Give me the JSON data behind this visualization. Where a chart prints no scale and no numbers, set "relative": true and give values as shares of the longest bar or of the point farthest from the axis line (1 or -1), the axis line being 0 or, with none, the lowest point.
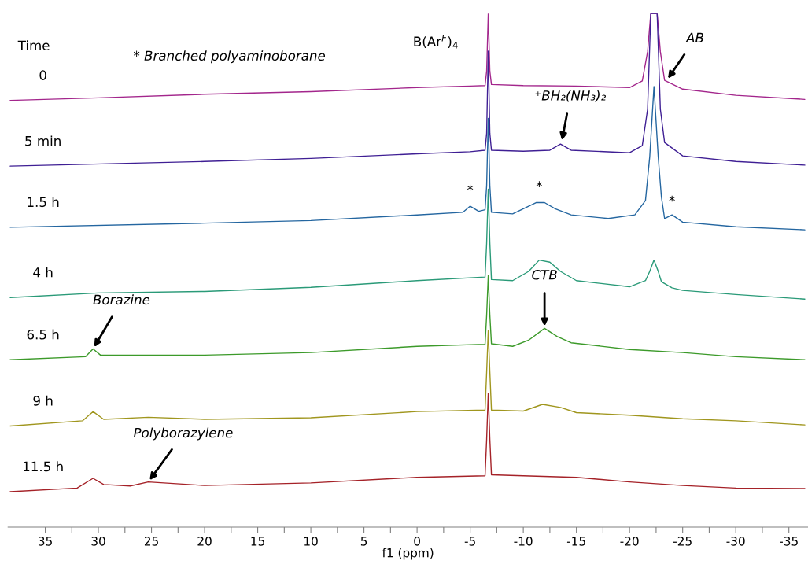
{
  "chart_data": {
    "type": "line",
    "relative": true,
    "xlabel": "f1 (ppm)",
    "legend_title": "Time",
    "xlim": [
      38.5,
      -36.8
    ],
    "xticks": [
      35,
      {
        "value": 32.5,
        "label": null
      },
      30,
      {
        "value": 27.5,
        "label": null
      },
      25,
      {
        "value": 22.5,
        "label": null
      },
      20,
      {
        "value": 17.5,
        "label": null
      },
      15,
      {
        "value": 12.5,
        "label": null
      },
      10,
      {
        "value": 7.5,
        "label": null
      },
      5,
      {
        "value": 2.5,
        "label": null
      },
      0,
      {
        "value": -2.5,
        "label": null
      },
      -5,
      {
        "value": -7.5,
        "label": null
      },
      -10,
      {
        "value": -12.5,
        "label": null
      },
      -15,
      {
        "value": -17.5,
        "label": null
      },
      -20,
      {
        "value": -22.5,
        "label": null
      },
      -25,
      {
        "value": -27.5,
        "label": null
      },
      -30,
      {
        "value": -32.5,
        "label": null
      },
      -35
    ],
    "series": [
      {
        "name": "0",
        "color": "#a3268c",
        "x": [
          38.3,
          30,
          20,
          10,
          0,
          -5,
          -6.4,
          -6.55,
          -6.7,
          -6.85,
          -7.0,
          -10,
          -15,
          -20,
          -21.2,
          -21.7,
          -22.0,
          -22.3,
          -22.6,
          -22.9,
          -23.3,
          -25,
          -30,
          -36.5
        ],
        "values": [
          0.831,
          0.836,
          0.843,
          0.848,
          0.856,
          0.859,
          0.86,
          0.888,
          1.0,
          0.888,
          0.862,
          0.86,
          0.859,
          0.856,
          0.869,
          0.926,
          1.0,
          1.0,
          1.0,
          0.926,
          0.87,
          0.853,
          0.841,
          0.833
        ]
      },
      {
        "name": "5 min",
        "color": "#3f1f94",
        "x": [
          38.3,
          20,
          10,
          0,
          -5,
          -6.4,
          -6.55,
          -6.7,
          -6.85,
          -7.0,
          -10,
          -12.5,
          -13.5,
          -14.5,
          -20,
          -21.2,
          -21.7,
          -22.0,
          -22.3,
          -22.6,
          -22.9,
          -23.3,
          -25,
          -30,
          -36.5
        ],
        "values": [
          0.703,
          0.712,
          0.718,
          0.727,
          0.731,
          0.734,
          0.767,
          0.927,
          0.767,
          0.734,
          0.732,
          0.734,
          0.746,
          0.734,
          0.729,
          0.743,
          0.814,
          1.0,
          1.0,
          1.0,
          0.814,
          0.749,
          0.723,
          0.712,
          0.705
        ]
      },
      {
        "name": "1.5 h",
        "color": "#2466a0",
        "x": [
          38.3,
          20,
          10,
          0,
          -4.3,
          -5.0,
          -5.8,
          -6.4,
          -6.55,
          -6.7,
          -6.85,
          -7.0,
          -9,
          -11.2,
          -12.0,
          -13.0,
          -14.5,
          -18,
          -20.5,
          -21.5,
          -21.9,
          -22.3,
          -22.7,
          -23.0,
          -23.3,
          -24,
          -25,
          -30,
          -36.5
        ],
        "values": [
          0.584,
          0.592,
          0.597,
          0.608,
          0.613,
          0.625,
          0.615,
          0.618,
          0.665,
          0.796,
          0.665,
          0.613,
          0.61,
          0.632,
          0.632,
          0.62,
          0.608,
          0.601,
          0.608,
          0.636,
          0.721,
          0.858,
          0.721,
          0.643,
          0.601,
          0.608,
          0.594,
          0.585,
          0.579
        ]
      },
      {
        "name": "4 h",
        "color": "#2a9a78",
        "x": [
          38.3,
          30,
          20,
          10,
          0,
          -6.4,
          -6.55,
          -6.7,
          -6.85,
          -7.0,
          -9,
          -10.5,
          -11.5,
          -12.5,
          -13.5,
          -15,
          -20,
          -21.5,
          -21.9,
          -22.3,
          -22.7,
          -23.0,
          -24,
          -25,
          -30,
          -36.5
        ],
        "values": [
          0.447,
          0.456,
          0.459,
          0.467,
          0.48,
          0.487,
          0.553,
          0.658,
          0.553,
          0.482,
          0.48,
          0.498,
          0.52,
          0.516,
          0.498,
          0.48,
          0.468,
          0.48,
          0.498,
          0.52,
          0.498,
          0.478,
          0.466,
          0.461,
          0.453,
          0.444
        ]
      },
      {
        "name": "6.5 h",
        "color": "#3c9a2a",
        "x": [
          38.3,
          31.2,
          30.5,
          29.8,
          25,
          20,
          10,
          0,
          -6.4,
          -6.55,
          -6.7,
          -6.85,
          -7.0,
          -9,
          -10.5,
          -12.0,
          -13.2,
          -14.5,
          -20,
          -25,
          -30,
          -36.5
        ],
        "values": [
          0.326,
          0.332,
          0.347,
          0.335,
          0.335,
          0.335,
          0.34,
          0.352,
          0.356,
          0.413,
          0.49,
          0.413,
          0.357,
          0.352,
          0.364,
          0.387,
          0.371,
          0.359,
          0.346,
          0.34,
          0.332,
          0.326
        ]
      },
      {
        "name": "9 h",
        "color": "#a0961e",
        "x": [
          38.3,
          31.5,
          30.5,
          29.5,
          25.3,
          20,
          10,
          0,
          -6.4,
          -6.55,
          -6.7,
          -6.85,
          -7.0,
          -10,
          -11.8,
          -13.5,
          -15,
          -20,
          -25,
          -30,
          -36.5
        ],
        "values": [
          0.197,
          0.207,
          0.225,
          0.21,
          0.214,
          0.21,
          0.213,
          0.225,
          0.228,
          0.302,
          0.383,
          0.302,
          0.228,
          0.226,
          0.239,
          0.233,
          0.223,
          0.218,
          0.211,
          0.207,
          0.199
        ]
      },
      {
        "name": "11.5 h",
        "color": "#a52228",
        "x": [
          38.3,
          32,
          30.5,
          29.5,
          27,
          25.3,
          20,
          10,
          0,
          -6.4,
          -6.55,
          -6.7,
          -6.85,
          -7.0,
          -10,
          -15,
          -20,
          -25,
          -30,
          -36.5
        ],
        "values": [
          0.069,
          0.076,
          0.095,
          0.083,
          0.08,
          0.088,
          0.081,
          0.086,
          0.097,
          0.1,
          0.171,
          0.261,
          0.171,
          0.102,
          0.1,
          0.097,
          0.088,
          0.081,
          0.076,
          0.075
        ]
      }
    ],
    "annotations": [
      "* Branched polyaminoborane",
      {
        "text": "B(Ar$^{F}$)$_{4}$",
        "x": -6.7,
        "y": 1.0
      },
      {
        "text": "AB",
        "x": -23.5,
        "y": 0.87
      },
      {
        "text": "⁺BH₂(NH₃)₂",
        "x": -13.6,
        "y": 0.749
      },
      {
        "text": "*",
        "x": -5.0,
        "y": 0.625
      },
      {
        "text": "*",
        "x": -11.5,
        "y": 0.632
      },
      {
        "text": "*",
        "x": -24.0,
        "y": 0.608
      },
      {
        "text": "CTB",
        "x": -12.0,
        "y": 0.387
      },
      {
        "text": "Borazine",
        "x": 30.5,
        "y": 0.347
      },
      {
        "text": "Polyborazylene",
        "x": 25.3,
        "y": 0.088
      }
    ]
  }
}
